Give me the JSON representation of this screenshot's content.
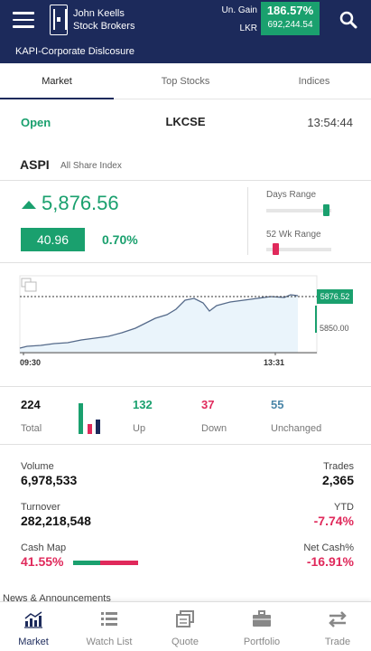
{
  "header": {
    "brand_line1": "John Keells",
    "brand_line2": "Stock Brokers",
    "gain_label": "Un. Gain",
    "currency_label": "LKR",
    "gain_pct": "186.57%",
    "gain_value": "692,244.54"
  },
  "subheader": {
    "title": "KAPI-Corporate Dislcosure"
  },
  "tabs": [
    {
      "label": "Market"
    },
    {
      "label": "Top Stocks"
    },
    {
      "label": "Indices"
    }
  ],
  "status": {
    "state": "Open",
    "exchange": "LKCSE",
    "time": "13:54:44"
  },
  "index": {
    "code": "ASPI",
    "name": "All Share Index",
    "price": "5,876.56",
    "change": "40.96",
    "change_pct": "0.70%",
    "days_range_label": "Days Range",
    "days_range_level": 0.97,
    "wk_range_label": "52 Wk Range",
    "wk_range_level": 0.1
  },
  "chart": {
    "current_label": "5876.52",
    "ref_label": "5850.00",
    "x_start": "09:30",
    "x_end": "13:31"
  },
  "stats": {
    "total": "224",
    "total_label": "Total",
    "up": "132",
    "up_label": "Up",
    "down": "37",
    "down_label": "Down",
    "unchanged": "55",
    "unchanged_label": "Unchanged"
  },
  "metrics": {
    "volume_label": "Volume",
    "volume": "6,978,533",
    "trades_label": "Trades",
    "trades": "2,365",
    "turnover_label": "Turnover",
    "turnover": "282,218,548",
    "ytd_label": "YTD",
    "ytd": "-7.74%",
    "cashmap_label": "Cash Map",
    "cashmap": "41.55%",
    "cashmap_level": 0.4155,
    "netcash_label": "Net Cash%",
    "netcash": "-16.91%"
  },
  "news_peek": "News & Announcements",
  "nav": [
    {
      "label": "Market",
      "icon": "chart-icon"
    },
    {
      "label": "Watch List",
      "icon": "list-icon"
    },
    {
      "label": "Quote",
      "icon": "quote-icon"
    },
    {
      "label": "Portfolio",
      "icon": "briefcase-icon"
    },
    {
      "label": "Trade",
      "icon": "swap-arrows-icon"
    }
  ],
  "colors": {
    "navy": "#1c2a5b",
    "green": "#1aa06e",
    "red": "#e0295b",
    "blue": "#4a86a8"
  }
}
